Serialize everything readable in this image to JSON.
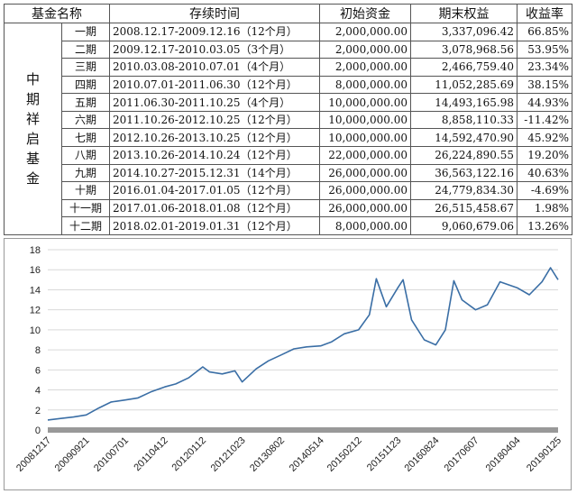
{
  "table": {
    "headers": [
      "基金名称",
      "存续时间",
      "初始资金",
      "期末权益",
      "收益率"
    ],
    "fund_name": "中期祥启基金",
    "rows": [
      {
        "period": "一期",
        "duration": "2008.12.17-2009.12.16（12个月）",
        "initial": "2,000,000.00",
        "final": "3,337,096.42",
        "rate": "66.85%"
      },
      {
        "period": "二期",
        "duration": "2009.12.17-2010.03.05（3个月）",
        "initial": "2,000,000.00",
        "final": "3,078,968.56",
        "rate": "53.95%"
      },
      {
        "period": "三期",
        "duration": "2010.03.08-2010.07.01（4个月）",
        "initial": "2,000,000.00",
        "final": "2,466,759.40",
        "rate": "23.34%"
      },
      {
        "period": "四期",
        "duration": "2010.07.01-2011.06.30（12个月）",
        "initial": "8,000,000.00",
        "final": "11,052,285.69",
        "rate": "38.15%"
      },
      {
        "period": "五期",
        "duration": "2011.06.30-2011.10.25（4个月）",
        "initial": "10,000,000.00",
        "final": "14,493,165.98",
        "rate": "44.93%"
      },
      {
        "period": "六期",
        "duration": "2011.10.26-2012.10.25（12个月）",
        "initial": "10,000,000.00",
        "final": "8,858,110.33",
        "rate": "-11.42%"
      },
      {
        "period": "七期",
        "duration": "2012.10.26-2013.10.25（12个月）",
        "initial": "10,000,000.00",
        "final": "14,592,470.90",
        "rate": "45.92%"
      },
      {
        "period": "八期",
        "duration": "2013.10.26-2014.10.24（12个月）",
        "initial": "22,000,000.00",
        "final": "26,224,890.55",
        "rate": "19.20%"
      },
      {
        "period": "九期",
        "duration": "2014.10.27-2015.12.31（14个月）",
        "initial": "26,000,000.00",
        "final": "36,563,122.16",
        "rate": "40.63%"
      },
      {
        "period": "十期",
        "duration": "2016.01.04-2017.01.05（12个月）",
        "initial": "26,000,000.00",
        "final": "24,779,834.30",
        "rate": "-4.69%"
      },
      {
        "period": "十一期",
        "duration": "2017.01.06-2018.01.08（12个月）",
        "initial": "26,000,000.00",
        "final": "26,515,458.67",
        "rate": "1.98%"
      },
      {
        "period": "十二期",
        "duration": "2018.02.01-2019.01.31（12个月）",
        "initial": "8,000,000.00",
        "final": "9,060,679.06",
        "rate": "13.26%"
      }
    ]
  },
  "chart_data": {
    "type": "line",
    "title": "",
    "xlabel": "",
    "ylabel": "",
    "ylim": [
      0,
      18
    ],
    "y_ticks": [
      0,
      2,
      4,
      6,
      8,
      10,
      12,
      14,
      16,
      18
    ],
    "x_tick_labels": [
      "20081217",
      "20090921",
      "20100701",
      "20110412",
      "20120112",
      "20121023",
      "20130802",
      "20140514",
      "20150212",
      "20151123",
      "20160824",
      "20170607",
      "20180404",
      "20190125"
    ],
    "grid": true,
    "legend": "none",
    "line_color": "#3a6ea5",
    "axis_bar_color": "#999999",
    "series": [
      {
        "x": [
          "20081217",
          "20090321",
          "20090621",
          "20090921",
          "20091221",
          "20100321",
          "20100701",
          "20101001",
          "20110101",
          "20110412",
          "20110701",
          "20111001",
          "20120112",
          "20120301",
          "20120601",
          "20120901",
          "20121023",
          "20130201",
          "20130501",
          "20130802",
          "20131101",
          "20140201",
          "20140514",
          "20140801",
          "20141101",
          "20150212",
          "20150501",
          "20150620",
          "20150901",
          "20151123",
          "20151231",
          "20160301",
          "20160601",
          "20160824",
          "20161101",
          "20170101",
          "20170301",
          "20170607",
          "20170901",
          "20171201",
          "20180404",
          "20180701",
          "20181001",
          "20181201",
          "20190125"
        ],
        "values": [
          1.0,
          1.15,
          1.3,
          1.5,
          2.2,
          2.8,
          3.0,
          3.2,
          3.8,
          4.3,
          4.6,
          5.2,
          6.3,
          5.8,
          5.6,
          5.9,
          4.8,
          6.1,
          6.9,
          7.5,
          8.1,
          8.3,
          8.4,
          8.8,
          9.6,
          10.0,
          11.5,
          15.1,
          12.3,
          14.2,
          15.0,
          11.0,
          9.0,
          8.5,
          10.0,
          14.9,
          13.0,
          12.0,
          12.5,
          14.8,
          14.2,
          13.5,
          14.8,
          16.2,
          15.0
        ]
      }
    ]
  }
}
